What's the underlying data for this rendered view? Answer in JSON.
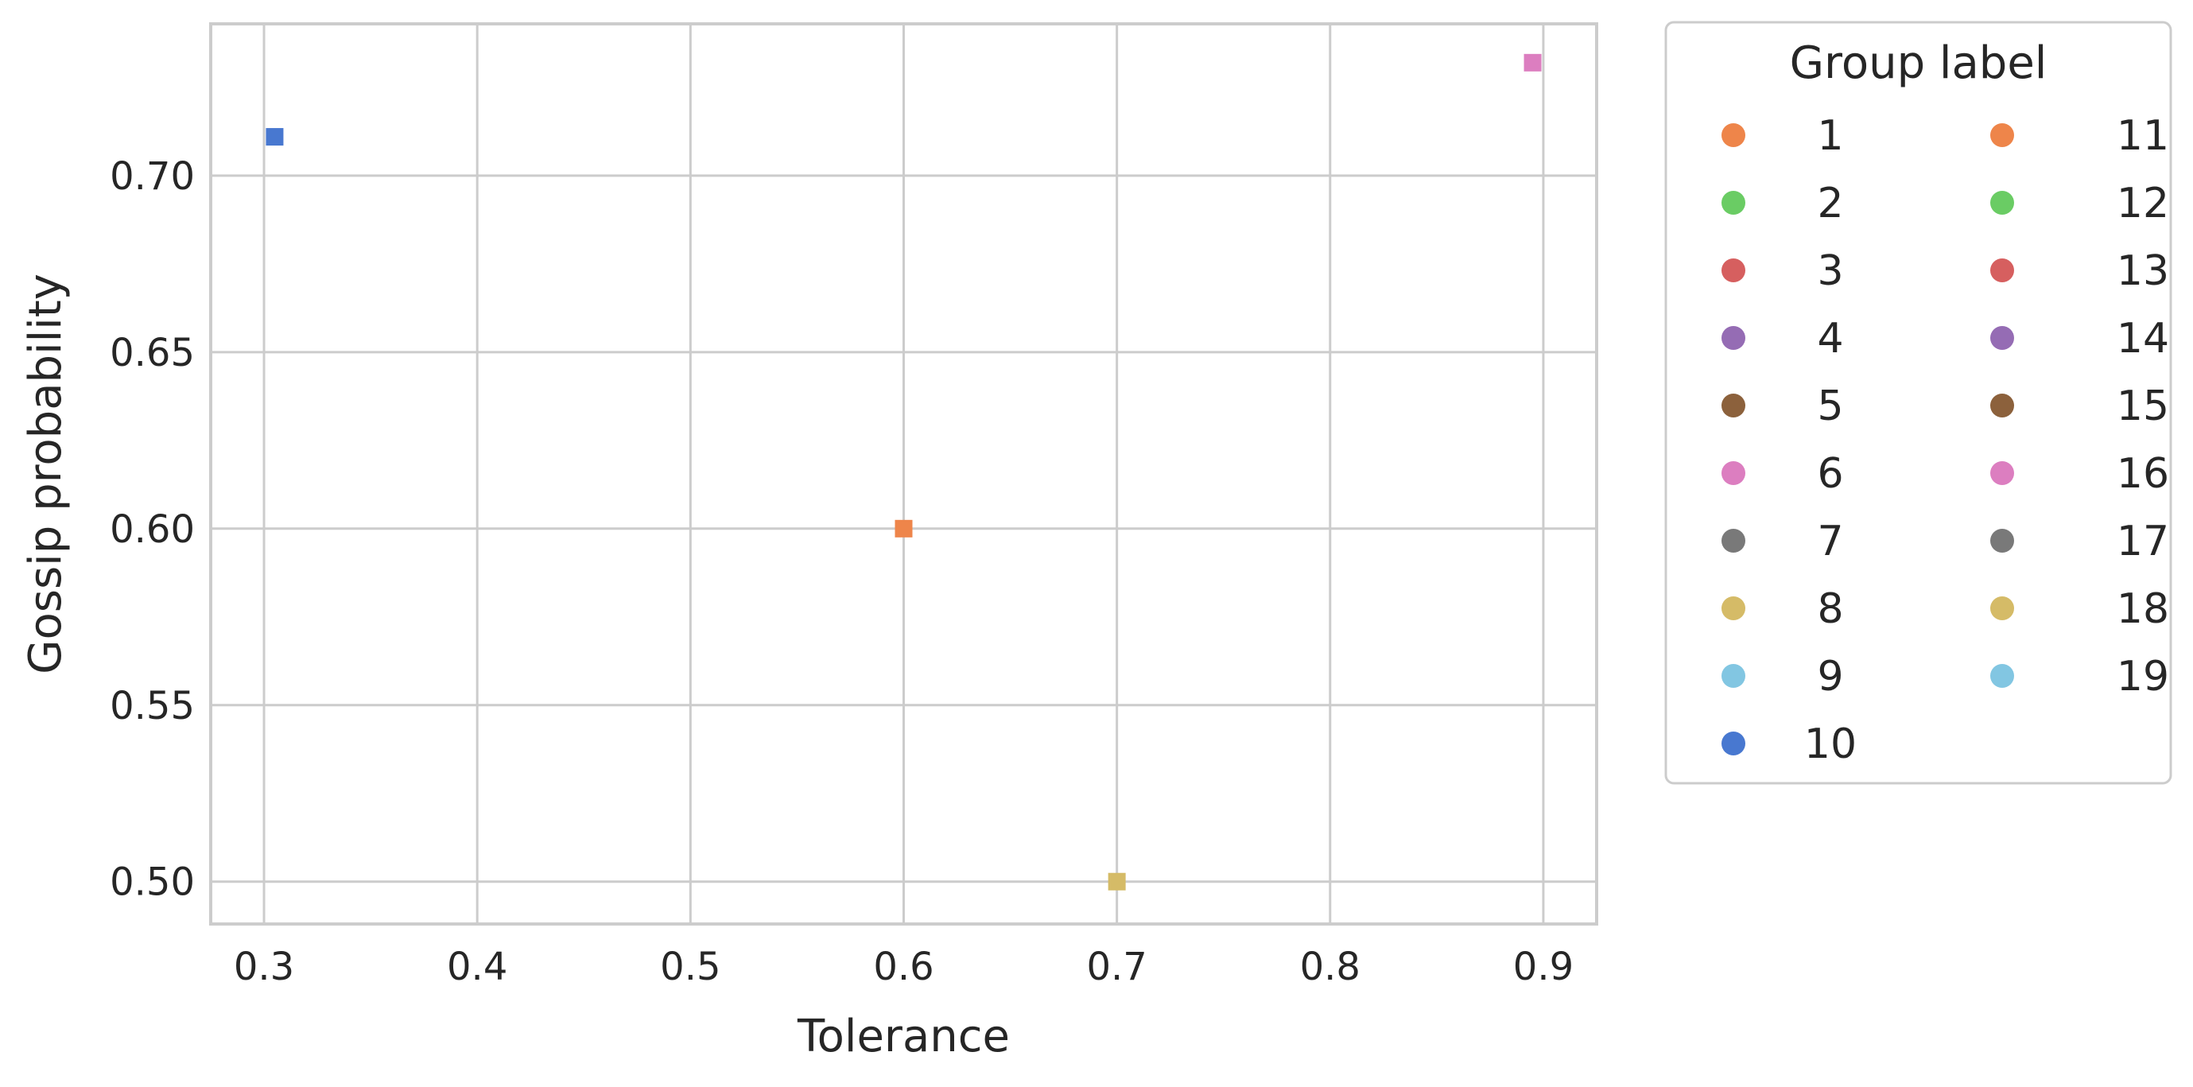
{
  "chart_data": {
    "type": "scatter",
    "title": "",
    "xlabel": "Tolerance",
    "ylabel": "Gossip probability",
    "xlim": [
      0.275,
      0.925
    ],
    "ylim": [
      0.488,
      0.743
    ],
    "x_ticks": [
      0.3,
      0.4,
      0.5,
      0.6,
      0.7,
      0.8,
      0.9
    ],
    "x_tick_labels": [
      "0.3",
      "0.4",
      "0.5",
      "0.6",
      "0.7",
      "0.8",
      "0.9"
    ],
    "y_ticks": [
      0.5,
      0.55,
      0.6,
      0.65,
      0.7
    ],
    "y_tick_labels": [
      "0.50",
      "0.55",
      "0.60",
      "0.65",
      "0.70"
    ],
    "grid": true,
    "marker": "square",
    "points": [
      {
        "x": 0.305,
        "y": 0.711,
        "group": "10",
        "color": "#4878d0"
      },
      {
        "x": 0.6,
        "y": 0.6,
        "group": "1",
        "color": "#ee854a"
      },
      {
        "x": 0.7,
        "y": 0.5,
        "group": "8",
        "color": "#d5bb67"
      },
      {
        "x": 0.895,
        "y": 0.732,
        "group": "6",
        "color": "#dc7ec0"
      }
    ],
    "legend": {
      "title": "Group label",
      "placement": "outside-right-top",
      "columns": 2,
      "entries": [
        {
          "label": "1",
          "color": "#ee854a"
        },
        {
          "label": "2",
          "color": "#6acc64"
        },
        {
          "label": "3",
          "color": "#d65f5f"
        },
        {
          "label": "4",
          "color": "#956cb4"
        },
        {
          "label": "5",
          "color": "#8c613c"
        },
        {
          "label": "6",
          "color": "#dc7ec0"
        },
        {
          "label": "7",
          "color": "#797979"
        },
        {
          "label": "8",
          "color": "#d5bb67"
        },
        {
          "label": "9",
          "color": "#82c6e2"
        },
        {
          "label": "10",
          "color": "#4878d0"
        },
        {
          "label": "11",
          "color": "#ee854a"
        },
        {
          "label": "12",
          "color": "#6acc64"
        },
        {
          "label": "13",
          "color": "#d65f5f"
        },
        {
          "label": "14",
          "color": "#956cb4"
        },
        {
          "label": "15",
          "color": "#8c613c"
        },
        {
          "label": "16",
          "color": "#dc7ec0"
        },
        {
          "label": "17",
          "color": "#797979"
        },
        {
          "label": "18",
          "color": "#d5bb67"
        },
        {
          "label": "19",
          "color": "#82c6e2"
        }
      ]
    }
  }
}
